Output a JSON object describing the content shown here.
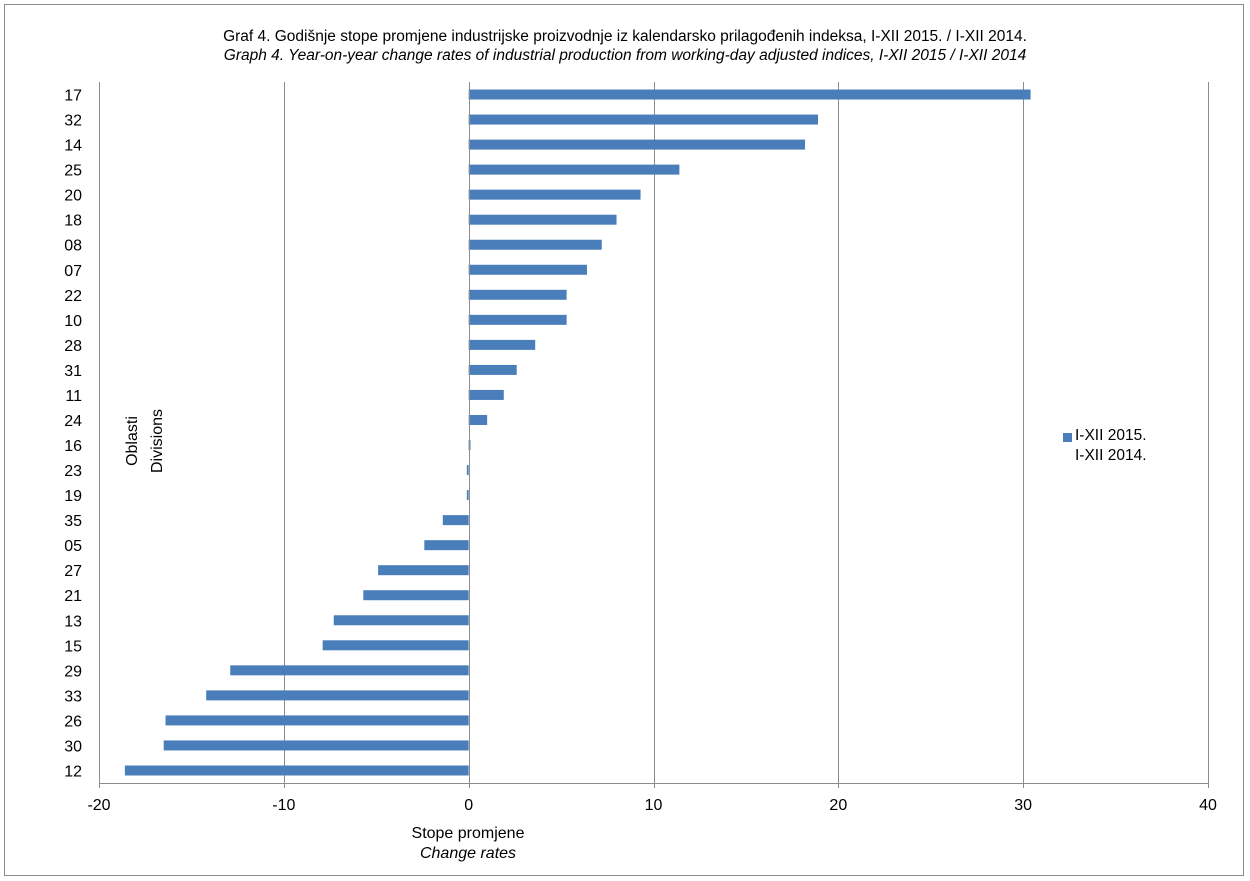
{
  "chart_data": {
    "type": "bar",
    "orientation": "horizontal",
    "title": "Graf 4. Godišnje stope  promjene industrijske proizvodnje iz kalendarsko prilagođenih indeksa, I-XII  2015. / I-XII  2014.",
    "subtitle": "Graph 4. Year-on-year change rates of industrial production from working-day adjusted indices, I-XII 2015 / I-XII 2014",
    "xlabel": "Stope promjene",
    "xlabel_en": "Change rates",
    "ylabel": "Oblasti",
    "ylabel_en": "Divisions",
    "xlim": [
      -20,
      40
    ],
    "xticks": [
      "-20",
      "-10",
      "0",
      "10",
      "20",
      "30",
      "40"
    ],
    "grid": true,
    "legend_position": "right",
    "categories": [
      "17",
      "32",
      "14",
      "25",
      "20",
      "18",
      "08",
      "07",
      "22",
      "10",
      "28",
      "31",
      "11",
      "24",
      "16",
      "23",
      "19",
      "35",
      "05",
      "27",
      "21",
      "13",
      "15",
      "29",
      "33",
      "26",
      "30",
      "12"
    ],
    "series": [
      {
        "name_line1": "I-XII 2015.",
        "name_line2": "I-XII 2014.",
        "color": "#4a7ebb",
        "values": [
          30.4,
          18.9,
          18.2,
          11.4,
          9.3,
          8.0,
          7.2,
          6.4,
          5.3,
          5.3,
          3.6,
          2.6,
          1.9,
          1.0,
          0.1,
          -0.1,
          -0.1,
          -1.4,
          -2.4,
          -4.9,
          -5.7,
          -7.3,
          -7.9,
          -12.9,
          -14.2,
          -16.4,
          -16.5,
          -18.6
        ]
      }
    ]
  }
}
